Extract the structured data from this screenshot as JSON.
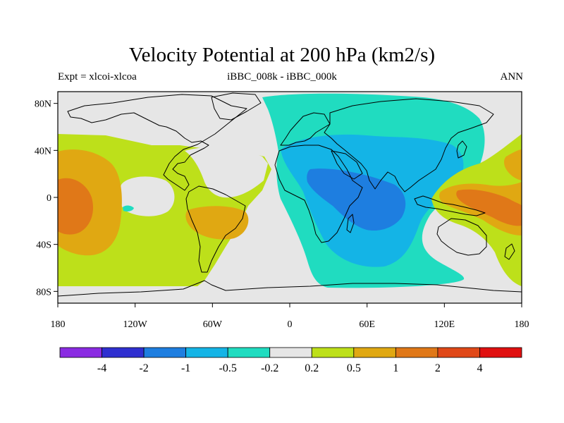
{
  "header": {
    "title": "Velocity Potential at 200 hPa (km2/s)",
    "experiment": "Expt = xlcoi-xlcoa",
    "subtitle": "iBBC_008k - iBBC_000k",
    "season": "ANN"
  },
  "axes": {
    "y_ticks": [
      {
        "label": "80N",
        "value": 80
      },
      {
        "label": "40N",
        "value": 40
      },
      {
        "label": "0",
        "value": 0
      },
      {
        "label": "40S",
        "value": -40
      },
      {
        "label": "80S",
        "value": -80
      }
    ],
    "x_ticks": [
      {
        "label": "180",
        "value": -180
      },
      {
        "label": "120W",
        "value": -120
      },
      {
        "label": "60W",
        "value": -60
      },
      {
        "label": "0",
        "value": 0
      },
      {
        "label": "60E",
        "value": 60
      },
      {
        "label": "120E",
        "value": 120
      },
      {
        "label": "180",
        "value": 180
      }
    ]
  },
  "colorbar": {
    "colors": [
      "#8a2be2",
      "#2f2fd0",
      "#1e7ee0",
      "#14b4e6",
      "#20dcc0",
      "#e6e6e6",
      "#bde01a",
      "#e0a812",
      "#e07818",
      "#e04818",
      "#e01010"
    ],
    "labels": [
      "-4",
      "-2",
      "-1",
      "-0.5",
      "-0.2",
      "0.2",
      "0.5",
      "1",
      "2",
      "4"
    ]
  },
  "colors": {
    "neutral": "#e6e6e6",
    "neg_weak": "#20dcc0",
    "neg_mid": "#14b4e6",
    "neg_strong": "#1e7ee0",
    "pos_weak": "#bde01a",
    "pos_mid": "#e0a812",
    "pos_strong": "#e07818"
  }
}
